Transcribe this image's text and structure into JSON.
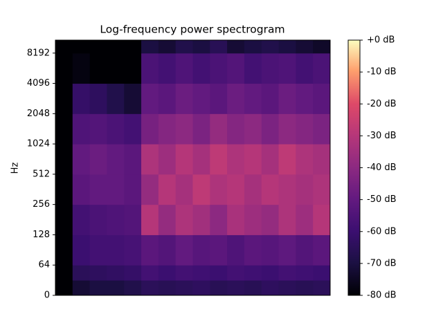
{
  "chart_data": {
    "type": "heatmap",
    "title": "Log-frequency power spectrogram",
    "y_label": "Hz",
    "yscale": "symlog",
    "colormap": "magma",
    "ylim": [
      0,
      11025
    ],
    "yticks": [
      0,
      64,
      128,
      256,
      512,
      1024,
      2048,
      4096,
      8192
    ],
    "y_bins": [
      0,
      32,
      64,
      128,
      256,
      512,
      1024,
      2048,
      4096,
      8192,
      11025
    ],
    "clim": [
      -80,
      0
    ],
    "cticks": [
      {
        "value": 0,
        "label": "+0 dB"
      },
      {
        "value": -10,
        "label": "-10 dB"
      },
      {
        "value": -20,
        "label": "-20 dB"
      },
      {
        "value": -30,
        "label": "-30 dB"
      },
      {
        "value": -40,
        "label": "-40 dB"
      },
      {
        "value": -50,
        "label": "-50 dB"
      },
      {
        "value": -60,
        "label": "-60 dB"
      },
      {
        "value": -70,
        "label": "-70 dB"
      },
      {
        "value": -80,
        "label": "-80 dB"
      }
    ],
    "values": [
      [
        -80,
        -72,
        -70,
        -70,
        -68,
        -65,
        -66,
        -65,
        -64,
        -66,
        -65,
        -66,
        -64,
        -65,
        -66,
        -65
      ],
      [
        -80,
        -65,
        -64,
        -63,
        -62,
        -58,
        -60,
        -58,
        -59,
        -60,
        -58,
        -59,
        -60,
        -58,
        -59,
        -60
      ],
      [
        -80,
        -60,
        -58,
        -58,
        -57,
        -52,
        -54,
        -50,
        -53,
        -52,
        -55,
        -52,
        -53,
        -51,
        -54,
        -52
      ],
      [
        -80,
        -58,
        -56,
        -55,
        -54,
        -30,
        -38,
        -32,
        -35,
        -40,
        -33,
        -36,
        -38,
        -32,
        -36,
        -30
      ],
      [
        -80,
        -52,
        -50,
        -50,
        -52,
        -38,
        -30,
        -34,
        -28,
        -32,
        -30,
        -34,
        -30,
        -32,
        -34,
        -32
      ],
      [
        -80,
        -50,
        -48,
        -50,
        -52,
        -32,
        -36,
        -30,
        -34,
        -28,
        -32,
        -30,
        -34,
        -28,
        -32,
        -34
      ],
      [
        -80,
        -55,
        -54,
        -56,
        -58,
        -45,
        -42,
        -40,
        -44,
        -38,
        -42,
        -40,
        -44,
        -40,
        -42,
        -44
      ],
      [
        -80,
        -62,
        -64,
        -68,
        -72,
        -50,
        -52,
        -48,
        -50,
        -52,
        -48,
        -50,
        -52,
        -48,
        -50,
        -52
      ],
      [
        -80,
        -78,
        -80,
        -80,
        -80,
        -56,
        -58,
        -55,
        -58,
        -56,
        -54,
        -58,
        -56,
        -55,
        -58,
        -56
      ],
      [
        -80,
        -80,
        -80,
        -80,
        -80,
        -70,
        -72,
        -68,
        -70,
        -66,
        -72,
        -70,
        -68,
        -70,
        -72,
        -74
      ]
    ]
  }
}
